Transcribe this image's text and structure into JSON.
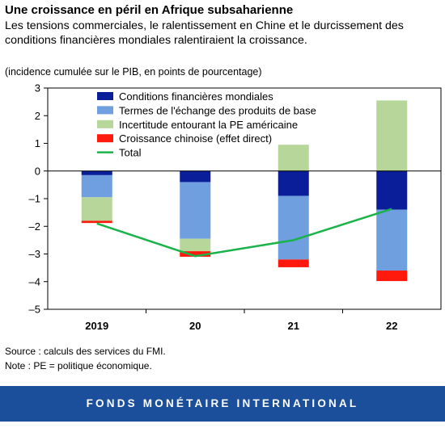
{
  "header": {
    "title": "Une croissance en péril en Afrique subsaharienne",
    "subtitle": "Les tensions commerciales, le ralentissement en Chine et le durcissement des conditions financières mondiales ralentiraient la croissance."
  },
  "chart_data": {
    "type": "bar",
    "stacked": true,
    "ylabel": "(incidence cumulée sur le PIB, en points de pourcentage)",
    "xlabel": "",
    "categories": [
      "2019",
      "20",
      "21",
      "22"
    ],
    "ylim": [
      -5,
      3
    ],
    "yticks": [
      3,
      2,
      1,
      0,
      -1,
      -2,
      -3,
      -4,
      -5
    ],
    "grid": false,
    "legend_position": "top-center",
    "series": [
      {
        "name": "Conditions financières mondiales",
        "color": "#0a1e9a",
        "kind": "bar",
        "values": [
          -0.15,
          -0.4,
          -0.9,
          -1.4
        ]
      },
      {
        "name": "Termes de l'échange des produits de base",
        "color": "#6f9fde",
        "kind": "bar",
        "values": [
          -0.8,
          -2.05,
          -2.3,
          -2.2
        ]
      },
      {
        "name": "Incertitude entourant la PE américaine",
        "color": "#b7d69a",
        "kind": "bar",
        "values": [
          -0.85,
          -0.45,
          0.95,
          2.55
        ]
      },
      {
        "name": "Croissance chinoise (effet direct)",
        "color": "#ff1a0d",
        "kind": "bar",
        "values": [
          -0.08,
          -0.2,
          -0.28,
          -0.38
        ]
      },
      {
        "name": "Total",
        "color": "#1ab34a",
        "kind": "line",
        "values": [
          -1.9,
          -3.08,
          -2.5,
          -1.37
        ]
      }
    ]
  },
  "notes": {
    "source": "Source : calculs des services du FMI.",
    "note": "Note : PE = politique économique."
  },
  "footer": {
    "text": "FONDS MONÉTAIRE INTERNATIONAL"
  }
}
